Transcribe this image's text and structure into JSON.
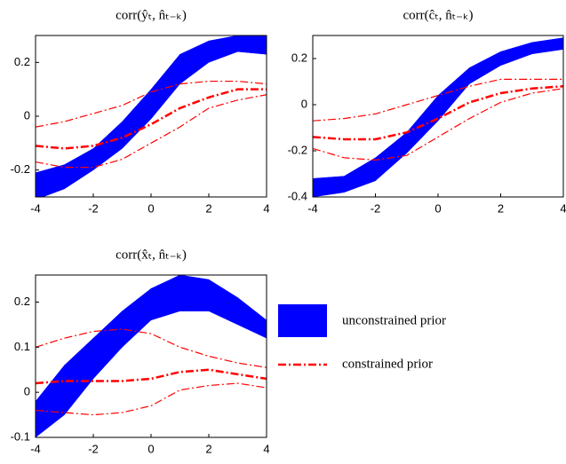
{
  "chart_data": [
    {
      "type": "band-line",
      "title": "corr(ŷₜ, n̂ₜ₋ₖ)",
      "x": [
        -4,
        -3,
        -2,
        -1,
        0,
        1,
        2,
        3,
        4
      ],
      "xlim": [
        -4,
        4
      ],
      "xticks": [
        -4,
        -2,
        0,
        2,
        4
      ],
      "ylim": [
        -0.3,
        0.3
      ],
      "yticks": [
        -0.2,
        0,
        0.2
      ],
      "band": {
        "color": "#0000ff",
        "lower": [
          -0.31,
          -0.27,
          -0.2,
          -0.12,
          -0.01,
          0.12,
          0.2,
          0.24,
          0.23
        ],
        "upper": [
          -0.21,
          -0.18,
          -0.12,
          -0.02,
          0.1,
          0.23,
          0.28,
          0.3,
          0.3
        ]
      },
      "lines": [
        {
          "color": "#ff0000",
          "values": [
            -0.04,
            -0.02,
            0.01,
            0.04,
            0.09,
            0.12,
            0.13,
            0.13,
            0.12
          ]
        },
        {
          "color": "#ff0000",
          "values": [
            -0.11,
            -0.12,
            -0.11,
            -0.08,
            -0.03,
            0.03,
            0.07,
            0.1,
            0.1
          ]
        },
        {
          "color": "#ff0000",
          "values": [
            -0.17,
            -0.19,
            -0.19,
            -0.16,
            -0.1,
            -0.04,
            0.03,
            0.06,
            0.08
          ]
        }
      ]
    },
    {
      "type": "band-line",
      "title": "corr(ĉₜ, n̂ₜ₋ₖ)",
      "x": [
        -4,
        -3,
        -2,
        -1,
        0,
        1,
        2,
        3,
        4
      ],
      "xlim": [
        -4,
        4
      ],
      "xticks": [
        -4,
        -2,
        0,
        2,
        4
      ],
      "ylim": [
        -0.4,
        0.3
      ],
      "yticks": [
        -0.4,
        -0.2,
        0,
        0.2
      ],
      "band": {
        "color": "#0000ff",
        "lower": [
          -0.4,
          -0.38,
          -0.33,
          -0.21,
          -0.07,
          0.09,
          0.17,
          0.22,
          0.24
        ],
        "upper": [
          -0.32,
          -0.31,
          -0.23,
          -0.12,
          0.04,
          0.16,
          0.23,
          0.27,
          0.29
        ]
      },
      "lines": [
        {
          "color": "#ff0000",
          "values": [
            -0.07,
            -0.06,
            -0.04,
            0,
            0.04,
            0.08,
            0.11,
            0.11,
            0.11
          ]
        },
        {
          "color": "#ff0000",
          "values": [
            -0.14,
            -0.15,
            -0.15,
            -0.12,
            -0.06,
            0.01,
            0.05,
            0.07,
            0.08
          ]
        },
        {
          "color": "#ff0000",
          "values": [
            -0.19,
            -0.23,
            -0.24,
            -0.22,
            -0.14,
            -0.06,
            0.01,
            0.05,
            0.07
          ]
        }
      ]
    },
    {
      "type": "band-line",
      "title": "corr(x̂ₜ, n̂ₜ₋ₖ)",
      "x": [
        -4,
        -3,
        -2,
        -1,
        0,
        1,
        2,
        3,
        4
      ],
      "xlim": [
        -4,
        4
      ],
      "xticks": [
        -4,
        -2,
        0,
        2,
        4
      ],
      "ylim": [
        -0.1,
        0.26
      ],
      "yticks": [
        -0.1,
        0,
        0.1,
        0.2
      ],
      "band": {
        "color": "#0000ff",
        "lower": [
          -0.1,
          -0.05,
          0.03,
          0.1,
          0.16,
          0.18,
          0.18,
          0.15,
          0.12
        ],
        "upper": [
          -0.02,
          0.06,
          0.12,
          0.18,
          0.23,
          0.26,
          0.25,
          0.21,
          0.16
        ]
      },
      "lines": [
        {
          "color": "#ff0000",
          "values": [
            0.1,
            0.12,
            0.135,
            0.14,
            0.13,
            0.1,
            0.08,
            0.065,
            0.055
          ]
        },
        {
          "color": "#ff0000",
          "values": [
            0.02,
            0.025,
            0.025,
            0.025,
            0.03,
            0.045,
            0.05,
            0.04,
            0.03
          ]
        },
        {
          "color": "#ff0000",
          "values": [
            -0.04,
            -0.045,
            -0.05,
            -0.045,
            -0.03,
            0.005,
            0.015,
            0.02,
            0.01
          ]
        }
      ]
    }
  ],
  "legend": [
    {
      "label": "unconstrained prior",
      "color": "#0000ff"
    },
    {
      "label": "constrained prior",
      "color": "#ff0000"
    }
  ]
}
